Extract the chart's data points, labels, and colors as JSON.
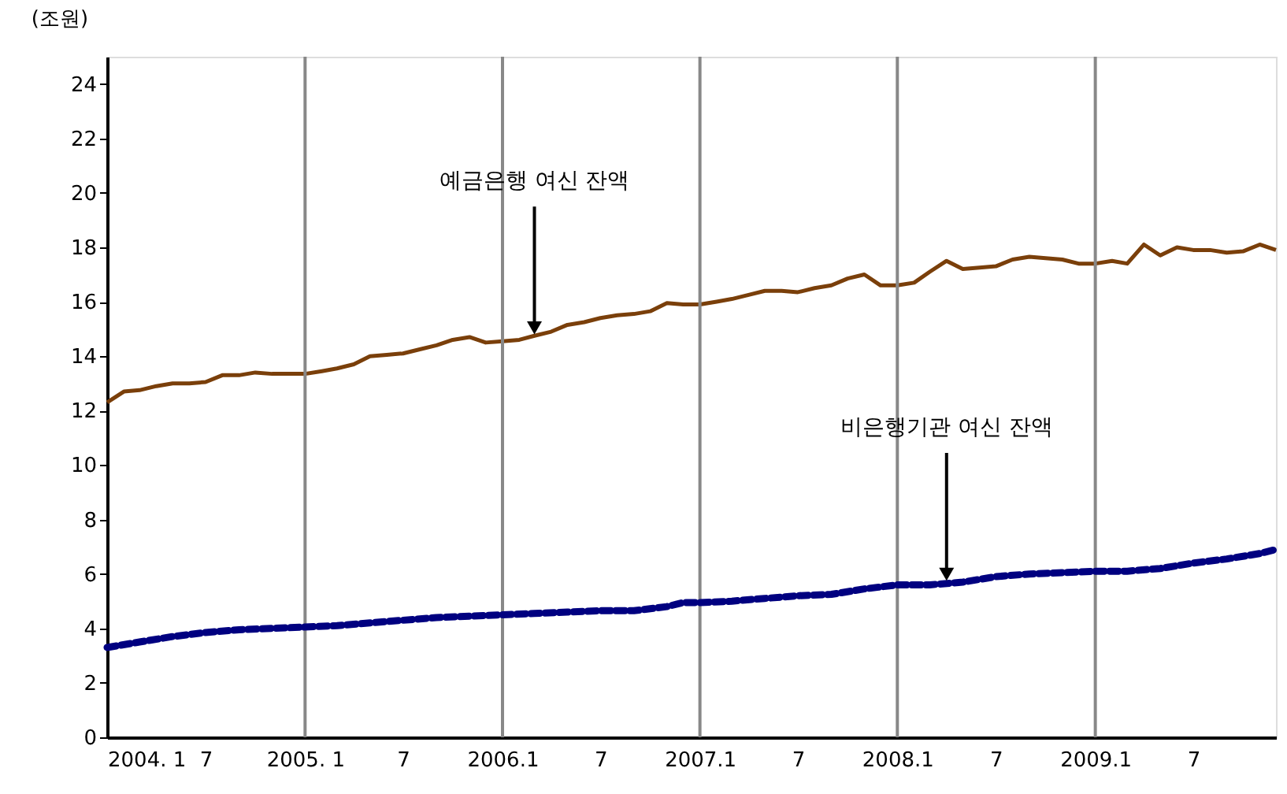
{
  "chart_data": {
    "type": "line",
    "ylabel": "(조원)",
    "x": [
      "2004-01",
      "2004-02",
      "2004-03",
      "2004-04",
      "2004-05",
      "2004-06",
      "2004-07",
      "2004-08",
      "2004-09",
      "2004-10",
      "2004-11",
      "2004-12",
      "2005-01",
      "2005-02",
      "2005-03",
      "2005-04",
      "2005-05",
      "2005-06",
      "2005-07",
      "2005-08",
      "2005-09",
      "2005-10",
      "2005-11",
      "2005-12",
      "2006-01",
      "2006-02",
      "2006-03",
      "2006-04",
      "2006-05",
      "2006-06",
      "2006-07",
      "2006-08",
      "2006-09",
      "2006-10",
      "2006-11",
      "2006-12",
      "2007-01",
      "2007-02",
      "2007-03",
      "2007-04",
      "2007-05",
      "2007-06",
      "2007-07",
      "2007-08",
      "2007-09",
      "2007-10",
      "2007-11",
      "2007-12",
      "2008-01",
      "2008-02",
      "2008-03",
      "2008-04",
      "2008-05",
      "2008-06",
      "2008-07",
      "2008-08",
      "2008-09",
      "2008-10",
      "2008-11",
      "2008-12",
      "2009-01",
      "2009-02",
      "2009-03",
      "2009-04",
      "2009-05",
      "2009-06",
      "2009-07",
      "2009-08",
      "2009-09",
      "2009-10",
      "2009-11",
      "2009-12"
    ],
    "series": [
      {
        "color": "#7a3f0a",
        "line_style": "solid",
        "values": [
          12.3,
          12.7,
          12.75,
          12.9,
          13.0,
          13.0,
          13.05,
          13.3,
          13.3,
          13.4,
          13.35,
          13.35,
          13.35,
          13.45,
          13.55,
          13.7,
          14.0,
          14.05,
          14.1,
          14.25,
          14.4,
          14.6,
          14.7,
          14.5,
          14.55,
          14.6,
          14.75,
          14.9,
          15.15,
          15.25,
          15.4,
          15.5,
          15.55,
          15.65,
          15.95,
          15.9,
          15.9,
          16.0,
          16.1,
          16.25,
          16.4,
          16.4,
          16.35,
          16.5,
          16.6,
          16.85,
          17.0,
          16.6,
          16.6,
          16.7,
          17.1,
          17.5,
          17.2,
          17.25,
          17.3,
          17.55,
          17.65,
          17.6,
          17.55,
          17.4,
          17.4,
          17.5,
          17.4,
          18.1,
          17.7,
          18.0,
          17.9,
          17.9,
          17.8,
          17.85,
          18.1,
          17.9
        ]
      },
      {
        "color": "#000080",
        "line_style": "dashed",
        "x": [
          "2004-01",
          "2004-03",
          "2004-05",
          "2004-07",
          "2004-09",
          "2004-11",
          "2005-01",
          "2005-03",
          "2005-05",
          "2005-07",
          "2005-09",
          "2005-11",
          "2006-01",
          "2006-03",
          "2006-05",
          "2006-07",
          "2006-09",
          "2006-11",
          "2006-12",
          "2007-01",
          "2007-03",
          "2007-05",
          "2007-07",
          "2007-09",
          "2007-11",
          "2008-01",
          "2008-03",
          "2008-05",
          "2008-07",
          "2008-09",
          "2008-11",
          "2009-01",
          "2009-03",
          "2009-05",
          "2009-07",
          "2009-09",
          "2009-11",
          "2009-12"
        ],
        "values": [
          3.3,
          3.5,
          3.7,
          3.85,
          3.95,
          4.0,
          4.05,
          4.1,
          4.2,
          4.3,
          4.4,
          4.45,
          4.5,
          4.55,
          4.6,
          4.65,
          4.65,
          4.8,
          4.95,
          4.95,
          5.0,
          5.1,
          5.2,
          5.25,
          5.45,
          5.6,
          5.6,
          5.7,
          5.9,
          6.0,
          6.05,
          6.1,
          6.1,
          6.2,
          6.4,
          6.55,
          6.75,
          6.9
        ]
      }
    ],
    "xlim": [
      "2004-01",
      "2009-12"
    ],
    "xticks": [
      {
        "value": "2004-01",
        "label": "2004. 1"
      },
      {
        "value": "2004-07",
        "label": "7"
      },
      {
        "value": "2005-01",
        "label": "2005. 1"
      },
      {
        "value": "2005-07",
        "label": "7"
      },
      {
        "value": "2006-01",
        "label": "2006.1"
      },
      {
        "value": "2006-07",
        "label": "7"
      },
      {
        "value": "2007-01",
        "label": "2007.1"
      },
      {
        "value": "2007-07",
        "label": "7"
      },
      {
        "value": "2008-01",
        "label": "2008.1"
      },
      {
        "value": "2008-07",
        "label": "7"
      },
      {
        "value": "2009-01",
        "label": "2009.1"
      },
      {
        "value": "2009-07",
        "label": "7"
      }
    ],
    "ylim": [
      0,
      25
    ],
    "yticks": [
      0,
      2,
      4,
      6,
      8,
      10,
      12,
      14,
      16,
      18,
      20,
      22,
      24
    ],
    "grid": false,
    "legend": false,
    "marker": "none",
    "ref_lines": [
      {
        "axis": "x",
        "value": "2005-01",
        "color": "#888888"
      },
      {
        "axis": "x",
        "value": "2006-01",
        "color": "#888888"
      },
      {
        "axis": "x",
        "value": "2007-01",
        "color": "#888888"
      },
      {
        "axis": "x",
        "value": "2008-01",
        "color": "#888888"
      },
      {
        "axis": "x",
        "value": "2009-01",
        "color": "#888888"
      }
    ],
    "annotations": [
      {
        "text": "예금은행 여신 잔액",
        "x": "2006-03",
        "y": 14.75
      },
      {
        "text": "비은행기관 여신 잔액",
        "x": "2008-04",
        "y": 5.7
      }
    ]
  }
}
